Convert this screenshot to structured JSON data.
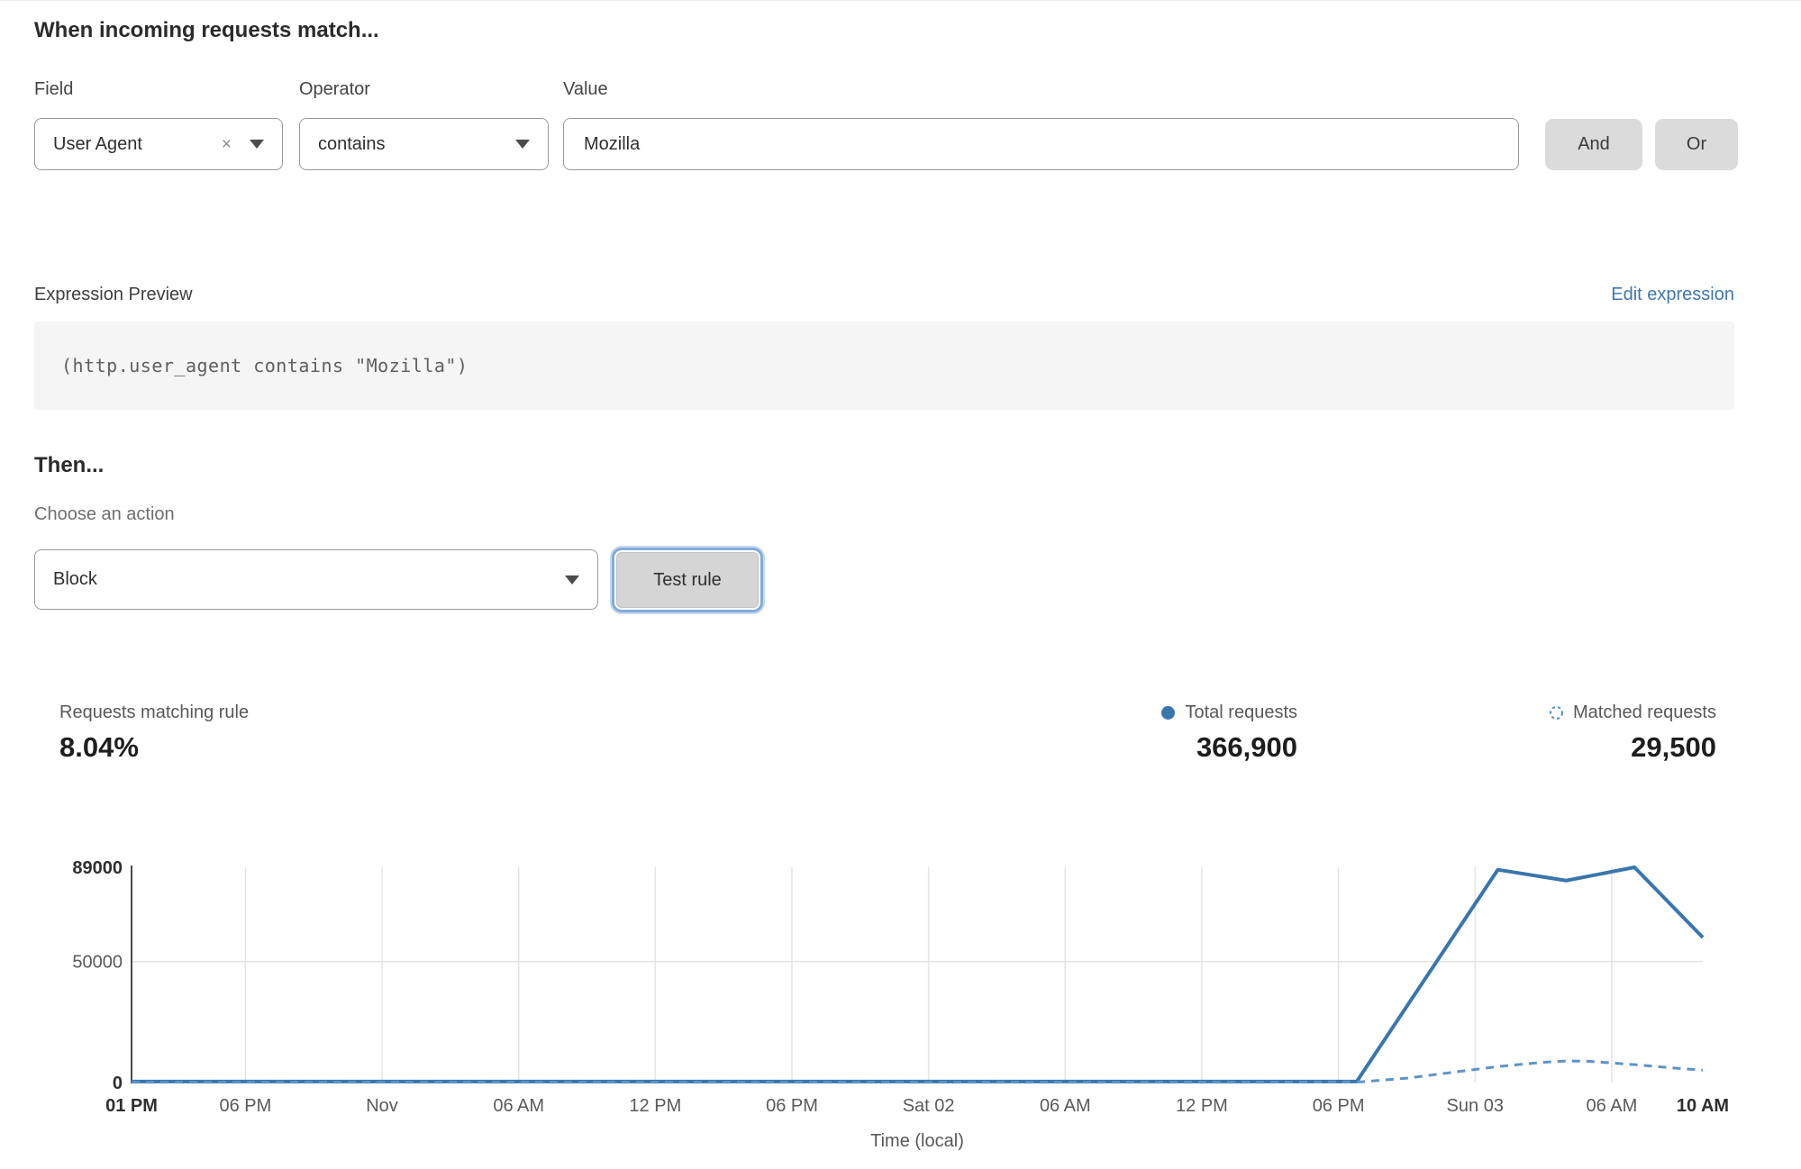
{
  "header": {
    "title": "When incoming requests match..."
  },
  "rule_builder": {
    "field": {
      "label": "Field",
      "value": "User Agent"
    },
    "operator": {
      "label": "Operator",
      "value": "contains"
    },
    "value": {
      "label": "Value",
      "value": "Mozilla"
    },
    "and_label": "And",
    "or_label": "Or"
  },
  "icons": {
    "clear": "×"
  },
  "expression": {
    "label": "Expression Preview",
    "edit_link": "Edit expression",
    "code": "(http.user_agent contains \"Mozilla\")"
  },
  "action": {
    "title": "Then...",
    "choose_label": "Choose an action",
    "selected": "Block",
    "test_button": "Test rule"
  },
  "stats": {
    "matching": {
      "label": "Requests matching rule",
      "value": "8.04%"
    },
    "total": {
      "label": "Total requests",
      "value": "366,900"
    },
    "matched": {
      "label": "Matched requests",
      "value": "29,500"
    }
  },
  "colors": {
    "accent_link": "#3e78b3",
    "total_line": "#3a76ae",
    "matched_line": "#5f93c5",
    "grid": "#e4e4e4",
    "axis": "#4a4a4a",
    "tick_text": "#5a5a5a",
    "tick_text_bold": "#2f2f2f"
  },
  "chart_data": {
    "type": "line",
    "title": "",
    "xlabel": "Time (local)",
    "ylabel": "",
    "ylim": [
      0,
      89000
    ],
    "x_hours_range": [
      0,
      69
    ],
    "grid": true,
    "legend_position": "top-right",
    "yticks": [
      {
        "v": 0,
        "label": "0",
        "bold": true,
        "gridline": false
      },
      {
        "v": 50000,
        "label": "50000",
        "bold": false,
        "gridline": true
      },
      {
        "v": 89000,
        "label": "89000",
        "bold": true,
        "gridline": false
      }
    ],
    "xticks": [
      {
        "h": 0,
        "label": "01 PM",
        "bold": true
      },
      {
        "h": 5,
        "label": "06 PM",
        "bold": false
      },
      {
        "h": 11,
        "label": "Nov",
        "bold": false
      },
      {
        "h": 17,
        "label": "06 AM",
        "bold": false
      },
      {
        "h": 23,
        "label": "12 PM",
        "bold": false
      },
      {
        "h": 29,
        "label": "06 PM",
        "bold": false
      },
      {
        "h": 35,
        "label": "Sat 02",
        "bold": false
      },
      {
        "h": 41,
        "label": "06 AM",
        "bold": false
      },
      {
        "h": 47,
        "label": "12 PM",
        "bold": false
      },
      {
        "h": 53,
        "label": "06 PM",
        "bold": false
      },
      {
        "h": 59,
        "label": "Sun 03",
        "bold": false
      },
      {
        "h": 65,
        "label": "06 AM",
        "bold": false
      },
      {
        "h": 69,
        "label": "10 AM",
        "bold": true
      }
    ],
    "series": [
      {
        "name": "Total requests",
        "style": "solid",
        "color": "#3a76ae",
        "points": [
          [
            0,
            400
          ],
          [
            10,
            400
          ],
          [
            20,
            400
          ],
          [
            30,
            400
          ],
          [
            40,
            400
          ],
          [
            50,
            400
          ],
          [
            53.8,
            400
          ],
          [
            60,
            88000
          ],
          [
            63,
            83500
          ],
          [
            66,
            89000
          ],
          [
            69,
            60000
          ]
        ]
      },
      {
        "name": "Matched requests",
        "style": "dashed",
        "color": "#5f93c5",
        "points": [
          [
            0,
            150
          ],
          [
            10,
            150
          ],
          [
            20,
            150
          ],
          [
            30,
            150
          ],
          [
            40,
            150
          ],
          [
            50,
            150
          ],
          [
            54,
            300
          ],
          [
            56,
            1800
          ],
          [
            58,
            4200
          ],
          [
            60,
            6600
          ],
          [
            62,
            8400
          ],
          [
            63,
            8900
          ],
          [
            64,
            8800
          ],
          [
            65,
            8100
          ],
          [
            66,
            7400
          ],
          [
            67,
            6600
          ],
          [
            68,
            5800
          ],
          [
            69,
            5100
          ]
        ]
      }
    ]
  }
}
